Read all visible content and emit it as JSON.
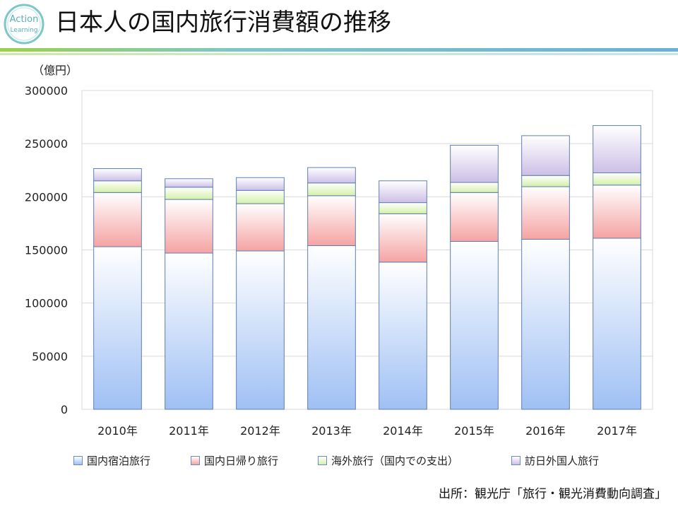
{
  "header": {
    "title": "日本人の国内旅行消費額の推移",
    "logo_text_1": "Action",
    "logo_text_2": "Learning"
  },
  "unit_label": "（億円）",
  "source": "出所：観光庁「旅行・観光消費動向調査」",
  "colors": {
    "domestic_stay": "#9fc0f4",
    "domestic_day": "#f5a3a3",
    "overseas": "#d4f0a8",
    "inbound": "#cdbfe6",
    "accent": "#7cc8c8"
  },
  "chart_data": {
    "type": "bar",
    "stacked": true,
    "title": "",
    "ylabel": "（億円）",
    "xlabel": "",
    "ylim": [
      0,
      300000
    ],
    "yticks": [
      "0",
      "50000",
      "100000",
      "150000",
      "200000",
      "250000",
      "300000"
    ],
    "categories": [
      "2010年",
      "2011年",
      "2012年",
      "2013年",
      "2014年",
      "2015年",
      "2016年",
      "2017年"
    ],
    "series": [
      {
        "name": "国内宿泊旅行",
        "values": [
          153000,
          147000,
          149000,
          154000,
          138500,
          158000,
          160000,
          161000
        ]
      },
      {
        "name": "国内日帰り旅行",
        "values": [
          51000,
          50500,
          44500,
          47000,
          45500,
          46000,
          49500,
          50000
        ]
      },
      {
        "name": "海外旅行（国内での支出）",
        "values": [
          11000,
          11500,
          12500,
          12000,
          10500,
          9500,
          10500,
          11500
        ]
      },
      {
        "name": "訪日外国人旅行",
        "values": [
          11500,
          8000,
          12000,
          14500,
          20500,
          35000,
          37500,
          44500
        ]
      }
    ],
    "grid": true,
    "legend": "bottom"
  }
}
